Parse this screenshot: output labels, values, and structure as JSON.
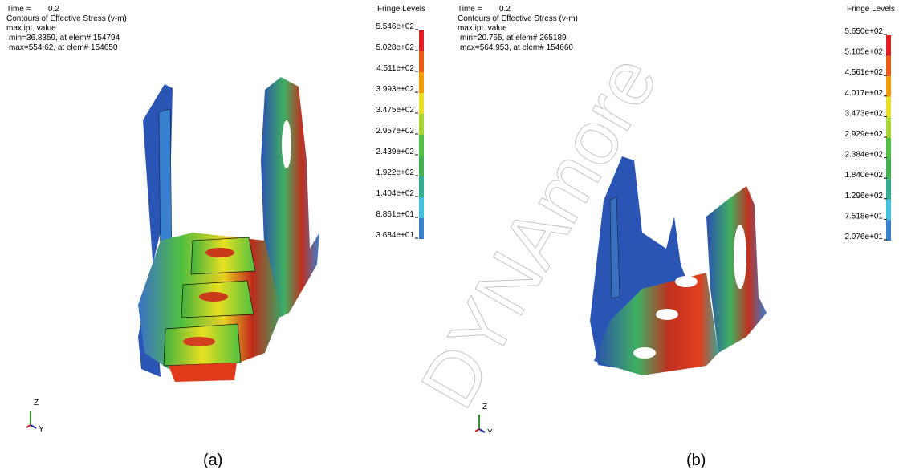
{
  "panels": [
    {
      "time_label": "Time =",
      "time_value": "0.2",
      "title": "Contours of Effective Stress (v-m)",
      "subtitle": "max ipt. value",
      "min_text": "min=36.8359, at elem# 154794",
      "max_text": "max=554.62, at elem# 154650",
      "legend_title": "Fringe Levels",
      "levels": [
        "5.546e+02",
        "5.028e+02",
        "4.511e+02",
        "3.993e+02",
        "3.475e+02",
        "2.957e+02",
        "2.439e+02",
        "1.922e+02",
        "1.404e+02",
        "8.861e+01",
        "3.684e+01"
      ],
      "axis_z": "Z",
      "axis_y": "Y",
      "caption": "(a)"
    },
    {
      "time_label": "Time =",
      "time_value": "0.2",
      "title": "Contours of Effective Stress (v-m)",
      "subtitle": "max ipt. value",
      "min_text": "min=20.765, at elem# 265189",
      "max_text": "max=564.953, at elem# 154660",
      "legend_title": "Fringe Levels",
      "levels": [
        "5.650e+02",
        "5.105e+02",
        "4.561e+02",
        "4.017e+02",
        "3.473e+02",
        "2.929e+02",
        "2.384e+02",
        "1.840e+02",
        "1.296e+02",
        "7.518e+01",
        "2.076e+01"
      ],
      "axis_z": "Z",
      "axis_y": "Y",
      "caption": "(b)"
    }
  ],
  "watermark": "DYNAmore"
}
